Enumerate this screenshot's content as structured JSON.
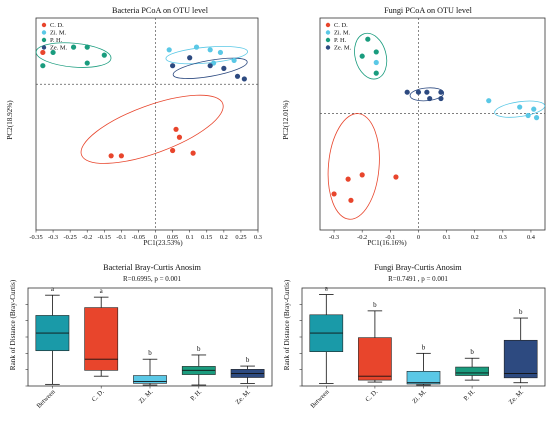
{
  "chart_data": [
    {
      "type": "scatter",
      "title": "Bacteria PCoA on OTU level",
      "xlabel": "PC1(23.53%)",
      "ylabel": "PC2(18.92%)",
      "xlim": [
        -0.35,
        0.3
      ],
      "ylim": [
        -0.55,
        0.25
      ],
      "xticks": [
        "-0.35",
        "-0.3",
        "-0.25",
        "-0.2",
        "-0.15",
        "-0.1",
        "-0.05",
        "0",
        "0.05",
        "0.1",
        "0.15",
        "0.2",
        "0.25",
        "0.3"
      ],
      "xtick_values": [
        -0.35,
        -0.3,
        -0.25,
        -0.2,
        -0.15,
        -0.1,
        -0.05,
        0,
        0.05,
        0.1,
        0.15,
        0.2,
        0.25,
        0.3
      ],
      "legend": "top-left",
      "series": [
        {
          "name": "C. D.",
          "color": "#e8452c",
          "points": [
            [
              -0.33,
              0.12
            ],
            [
              -0.13,
              -0.27
            ],
            [
              -0.1,
              -0.27
            ],
            [
              0.05,
              -0.25
            ],
            [
              0.06,
              -0.17
            ],
            [
              0.07,
              -0.2
            ],
            [
              0.11,
              -0.26
            ]
          ]
        },
        {
          "name": "Zi. M.",
          "color": "#5ac8e6",
          "points": [
            [
              0.04,
              0.13
            ],
            [
              0.12,
              0.14
            ],
            [
              0.16,
              0.13
            ],
            [
              0.19,
              0.12
            ],
            [
              0.23,
              0.09
            ],
            [
              0.17,
              0.08
            ]
          ]
        },
        {
          "name": "P. H.",
          "color": "#1a9c7e",
          "points": [
            [
              -0.33,
              0.07
            ],
            [
              -0.3,
              0.12
            ],
            [
              -0.24,
              0.14
            ],
            [
              -0.2,
              0.14
            ],
            [
              -0.2,
              0.08
            ],
            [
              -0.15,
              0.11
            ]
          ]
        },
        {
          "name": "Ze. M.",
          "color": "#2d4a80",
          "points": [
            [
              0.05,
              0.07
            ],
            [
              0.1,
              0.1
            ],
            [
              0.16,
              0.07
            ],
            [
              0.2,
              0.06
            ],
            [
              0.24,
              0.03
            ],
            [
              0.26,
              0.02
            ]
          ]
        }
      ],
      "ellipses": [
        {
          "series": "C. D.",
          "cx": -0.01,
          "cy": -0.17,
          "rx": 0.22,
          "ry": 0.09,
          "angle": -20
        },
        {
          "series": "Zi. M.",
          "cx": 0.15,
          "cy": 0.11,
          "rx": 0.12,
          "ry": 0.03,
          "angle": -5
        },
        {
          "series": "P. H.",
          "cx": -0.24,
          "cy": 0.11,
          "rx": 0.11,
          "ry": 0.045,
          "angle": 5
        },
        {
          "series": "Ze. M.",
          "cx": 0.16,
          "cy": 0.06,
          "rx": 0.11,
          "ry": 0.03,
          "angle": -10
        }
      ]
    },
    {
      "type": "scatter",
      "title": "Fungi PCoA on OTU level",
      "xlabel": "PC1(16.16%)",
      "ylabel": "PC2(12.01%)",
      "xlim": [
        -0.35,
        0.45
      ],
      "ylim": [
        -0.55,
        0.45
      ],
      "xticks": [
        "-0.3",
        "-0.2",
        "-0.1",
        "0",
        "0.1",
        "0.2",
        "0.3",
        "0.4"
      ],
      "xtick_values": [
        -0.3,
        -0.2,
        -0.1,
        0,
        0.1,
        0.2,
        0.3,
        0.4
      ],
      "legend": "top-left",
      "series": [
        {
          "name": "C. D.",
          "color": "#e8452c",
          "points": [
            [
              -0.3,
              -0.38
            ],
            [
              -0.25,
              -0.31
            ],
            [
              -0.24,
              -0.41
            ],
            [
              -0.2,
              -0.29
            ],
            [
              -0.08,
              -0.3
            ]
          ]
        },
        {
          "name": "Zi. M.",
          "color": "#5ac8e6",
          "points": [
            [
              -0.15,
              0.24
            ],
            [
              0.25,
              0.06
            ],
            [
              0.36,
              0.03
            ],
            [
              0.39,
              -0.01
            ],
            [
              0.41,
              0.02
            ],
            [
              0.42,
              -0.02
            ]
          ]
        },
        {
          "name": "P. H.",
          "color": "#1a9c7e",
          "points": [
            [
              -0.2,
              0.27
            ],
            [
              -0.18,
              0.35
            ],
            [
              -0.15,
              0.29
            ],
            [
              -0.15,
              0.19
            ]
          ]
        },
        {
          "name": "Ze. M.",
          "color": "#2d4a80",
          "points": [
            [
              -0.04,
              0.1
            ],
            [
              0,
              0.1
            ],
            [
              0.03,
              0.1
            ],
            [
              0.04,
              0.07
            ],
            [
              0.08,
              0.07
            ],
            [
              0.08,
              0.1
            ]
          ]
        }
      ],
      "ellipses": [
        {
          "series": "C. D.",
          "cx": -0.23,
          "cy": -0.25,
          "rx": 0.09,
          "ry": 0.25,
          "angle": 5
        },
        {
          "series": "Zi. M.",
          "cx": 0.36,
          "cy": 0.02,
          "rx": 0.09,
          "ry": 0.035,
          "angle": -8
        },
        {
          "series": "P. H.",
          "cx": -0.17,
          "cy": 0.27,
          "rx": 0.055,
          "ry": 0.11,
          "angle": -15
        },
        {
          "series": "Ze. M.",
          "cx": 0.03,
          "cy": 0.09,
          "rx": 0.06,
          "ry": 0.03,
          "angle": -5
        }
      ]
    },
    {
      "type": "box",
      "title": "Bacterial Bray-Curtis Anosim",
      "stat_label": "R=0.6995, p = 0.001",
      "ylabel": "Rank of Distance (Bray-Curtis)",
      "ylim": [
        0,
        300
      ],
      "yticks": [
        0,
        50,
        100,
        150,
        200,
        250
      ],
      "categories": [
        "Between",
        "C. D.",
        "Zi. M.",
        "P. H.",
        "Ze. M."
      ],
      "colors": [
        "#1a9aa8",
        "#e8452c",
        "#5ac8e6",
        "#1a9c7e",
        "#2d4a80"
      ],
      "letters": [
        "a",
        "a",
        "b",
        "b",
        "b"
      ],
      "boxes": [
        {
          "min": 5,
          "q1": 108,
          "median": 162,
          "q3": 216,
          "max": 278
        },
        {
          "min": 30,
          "q1": 48,
          "median": 82,
          "q3": 240,
          "max": 272
        },
        {
          "min": 3,
          "q1": 8,
          "median": 14,
          "q3": 32,
          "max": 82
        },
        {
          "min": 3,
          "q1": 35,
          "median": 48,
          "q3": 60,
          "max": 95
        },
        {
          "min": 8,
          "q1": 26,
          "median": 38,
          "q3": 51,
          "max": 61
        }
      ]
    },
    {
      "type": "box",
      "title": "Fungi Bray-Curtis Anosim",
      "stat_label": "R=0.7491 , p = 0.001",
      "ylabel": "Rank of Distance (Bray-Curtis)",
      "ylim": [
        0,
        300
      ],
      "yticks": [
        0,
        50,
        100,
        150,
        200,
        250
      ],
      "categories": [
        "Between",
        "C. D.",
        "Zi. M.",
        "P. H.",
        "Ze. M."
      ],
      "colors": [
        "#1a9aa8",
        "#e8452c",
        "#5ac8e6",
        "#1a9c7e",
        "#2d4a80"
      ],
      "letters": [
        "a",
        "b",
        "b",
        "b",
        "b"
      ],
      "boxes": [
        {
          "min": 8,
          "q1": 105,
          "median": 162,
          "q3": 218,
          "max": 280
        },
        {
          "min": 12,
          "q1": 18,
          "median": 30,
          "q3": 148,
          "max": 230
        },
        {
          "min": 3,
          "q1": 6,
          "median": 10,
          "q3": 45,
          "max": 100
        },
        {
          "min": 18,
          "q1": 32,
          "median": 40,
          "q3": 58,
          "max": 85
        },
        {
          "min": 10,
          "q1": 25,
          "median": 38,
          "q3": 140,
          "max": 208
        }
      ]
    }
  ]
}
